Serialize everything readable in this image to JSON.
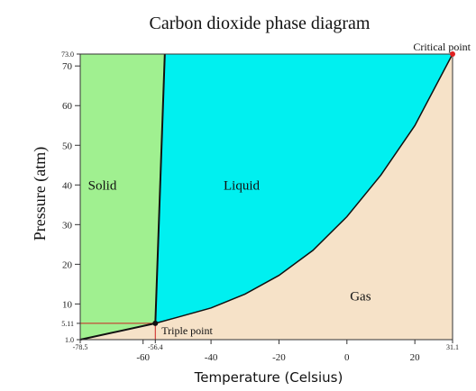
{
  "chart_data": {
    "type": "area",
    "title": "Carbon dioxide phase diagram",
    "xlabel": "Temperature (Celsius)",
    "ylabel": "Pressure (atm)",
    "xlim": [
      -78.5,
      31.1
    ],
    "ylim": [
      1.0,
      73.0
    ],
    "x_ticks": [
      -60,
      -40,
      -20,
      0,
      20
    ],
    "y_ticks": [
      10,
      20,
      30,
      40,
      50,
      60,
      70
    ],
    "special_x_ticks": [
      {
        "value": -78.5,
        "label": "-78.5"
      },
      {
        "value": -56.4,
        "label": "-56.4"
      },
      {
        "value": 31.1,
        "label": "31.1"
      }
    ],
    "special_y_ticks": [
      {
        "value": 1.0,
        "label": "1.0"
      },
      {
        "value": 5.11,
        "label": "5.11"
      },
      {
        "value": 73.0,
        "label": "73.0"
      }
    ],
    "regions": [
      {
        "name": "Solid",
        "color": "#a0f090",
        "label_at": [
          -72,
          40
        ]
      },
      {
        "name": "Liquid",
        "color": "#00f0f0",
        "label_at": [
          -31,
          40
        ]
      },
      {
        "name": "Gas",
        "color": "#f6e2c8",
        "label_at": [
          4,
          12
        ]
      }
    ],
    "boundaries": {
      "sublimation": [
        [
          -78.5,
          1.0
        ],
        [
          -56.4,
          5.11
        ]
      ],
      "melting": [
        [
          -56.4,
          5.11
        ],
        [
          -53.6,
          73.0
        ]
      ],
      "vaporization": [
        [
          -56.4,
          5.11
        ],
        [
          -50,
          6.6
        ],
        [
          -40,
          9.0
        ],
        [
          -30,
          12.5
        ],
        [
          -20,
          17.2
        ],
        [
          -10,
          23.5
        ],
        [
          0,
          32.0
        ],
        [
          10,
          42.5
        ],
        [
          20,
          55.0
        ],
        [
          31.1,
          73.0
        ]
      ]
    },
    "annotations": [
      {
        "label": "Triple point",
        "x": -56.4,
        "y": 5.11
      },
      {
        "label": "Critical point",
        "x": 31.1,
        "y": 73.0
      }
    ],
    "grid": false,
    "legend": "none"
  }
}
